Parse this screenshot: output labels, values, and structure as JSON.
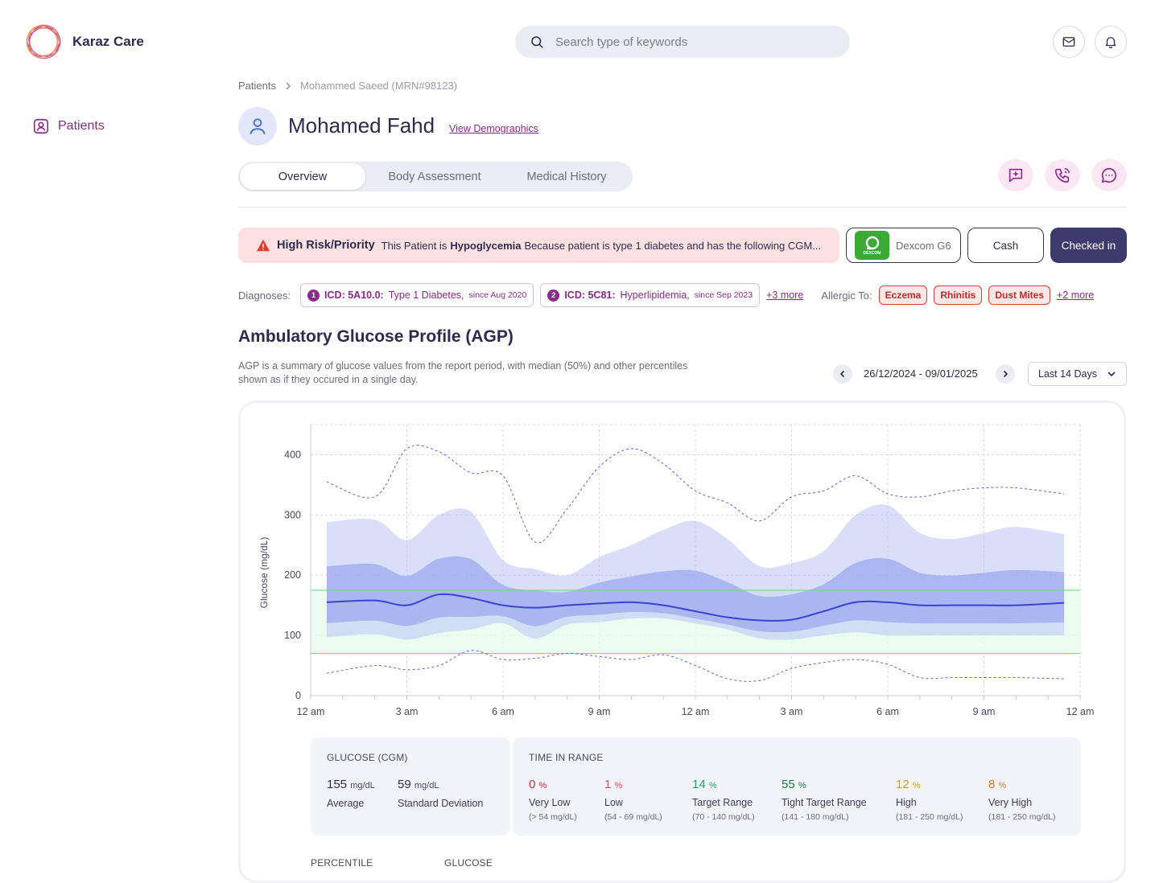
{
  "app": {
    "name": "Karaz Care"
  },
  "search": {
    "placeholder": "Search type of keywords"
  },
  "sidebar": {
    "items": [
      {
        "label": "Patients"
      }
    ]
  },
  "breadcrumb": {
    "root": "Patients",
    "current": "Mohammed Saeed (MRN#98123)"
  },
  "patient": {
    "name": "Mohamed Fahd",
    "demographics_link": "View Demographics"
  },
  "tabs": [
    {
      "label": "Overview"
    },
    {
      "label": "Body Assessment"
    },
    {
      "label": "Medical History"
    }
  ],
  "risk": {
    "title": "High Risk/Priority",
    "text_before": "This Patient is",
    "condition": "Hypoglycemia",
    "text_after": "Because patient is type 1 diabetes and has the following CGM..."
  },
  "device": {
    "name": "Dexcom G6",
    "logo_text": "DEXCOM"
  },
  "payment": {
    "label": "Cash"
  },
  "status": {
    "label": "Checked in"
  },
  "diagnoses": {
    "label": "Diagnoses:",
    "items": [
      {
        "num": "1",
        "code": "ICD: 5A10.0:",
        "name": "Type 1 Diabetes,",
        "since": "since Aug 2020"
      },
      {
        "num": "2",
        "code": "ICD: 5C81:",
        "name": "Hyperlipidemia,",
        "since": "since Sep 2023"
      }
    ],
    "more": "+3 more"
  },
  "allergies": {
    "label": "Allergic To:",
    "items": [
      "Eczema",
      "Rhinitis",
      "Dust Mites"
    ],
    "more": "+2 more"
  },
  "agp": {
    "title": "Ambulatory Glucose Profile (AGP)",
    "description": "AGP is a summary of glucose values from the report period, with median (50%) and other percentiles shown as if they occured in a single day.",
    "date_range": "26/12/2024 - 09/01/2025",
    "period": "Last 14 Days"
  },
  "chart_data": {
    "type": "area",
    "ylabel": "Glucose (mg/dL)",
    "ylim": [
      0,
      450
    ],
    "yticks": [
      0,
      100,
      200,
      300,
      400
    ],
    "x_ticks": [
      "12 am",
      "3 am",
      "6 am",
      "9 am",
      "12 am",
      "3 am",
      "6 am",
      "9 am",
      "12 am"
    ],
    "x_hours": [
      0.5,
      2,
      3,
      4,
      5,
      6,
      7,
      8,
      9,
      10,
      11,
      12,
      13,
      14,
      15,
      16,
      17,
      18,
      19,
      20,
      21,
      22,
      23.5
    ],
    "target_range": [
      70,
      175
    ],
    "series": [
      {
        "name": "p95",
        "values": [
          355,
          330,
          410,
          405,
          370,
          365,
          255,
          310,
          380,
          410,
          385,
          340,
          320,
          290,
          330,
          340,
          365,
          335,
          330,
          340,
          345,
          345,
          335
        ]
      },
      {
        "name": "p75",
        "values": [
          288,
          292,
          258,
          300,
          305,
          225,
          210,
          200,
          230,
          250,
          275,
          290,
          260,
          215,
          220,
          240,
          300,
          316,
          270,
          260,
          270,
          280,
          268
        ]
      },
      {
        "name": "p50",
        "values": [
          155,
          158,
          150,
          168,
          162,
          150,
          146,
          150,
          153,
          155,
          150,
          140,
          130,
          125,
          126,
          140,
          155,
          155,
          150,
          150,
          150,
          150,
          154
        ]
      },
      {
        "name": "p25",
        "values": [
          97,
          102,
          93,
          104,
          110,
          120,
          95,
          118,
          122,
          128,
          128,
          120,
          110,
          95,
          93,
          100,
          105,
          100,
          100,
          100,
          100,
          100,
          100
        ]
      },
      {
        "name": "p5",
        "values": [
          37,
          50,
          43,
          50,
          75,
          60,
          62,
          70,
          65,
          60,
          68,
          50,
          28,
          25,
          45,
          55,
          60,
          52,
          30,
          30,
          30,
          30,
          28
        ]
      }
    ]
  },
  "glucose_stats": {
    "title": "GLUCOSE (CGM)",
    "average": {
      "value": "155",
      "unit": "mg/dL",
      "label": "Average"
    },
    "sd": {
      "value": "59",
      "unit": "mg/dL",
      "label": "Standard Deviation"
    }
  },
  "time_in_range": {
    "title": "TIME IN RANGE",
    "items": [
      {
        "value": "0",
        "unit": "%",
        "label": "Very Low",
        "range": "(> 54 mg/dL)",
        "color": "#d32f2f"
      },
      {
        "value": "1",
        "unit": "%",
        "label": "Low",
        "range": "(54 - 69 mg/dL)",
        "color": "#e05454"
      },
      {
        "value": "14",
        "unit": "%",
        "label": "Target Range",
        "range": "(70 - 140 mg/dL)",
        "color": "#22a35a"
      },
      {
        "value": "55",
        "unit": "%",
        "label": "Tight Target Range",
        "range": "(141 - 180 mg/dL)",
        "color": "#15803d"
      },
      {
        "value": "12",
        "unit": "%",
        "label": "High",
        "range": "(181 - 250 mg/dL)",
        "color": "#d4a017"
      },
      {
        "value": "8",
        "unit": "%",
        "label": "Very High",
        "range": "(181 - 250 mg/dL)",
        "color": "#e07b18"
      }
    ]
  },
  "bottom": {
    "percentile_label": "PERCENTILE",
    "glucose_label": "GLUCOSE"
  }
}
